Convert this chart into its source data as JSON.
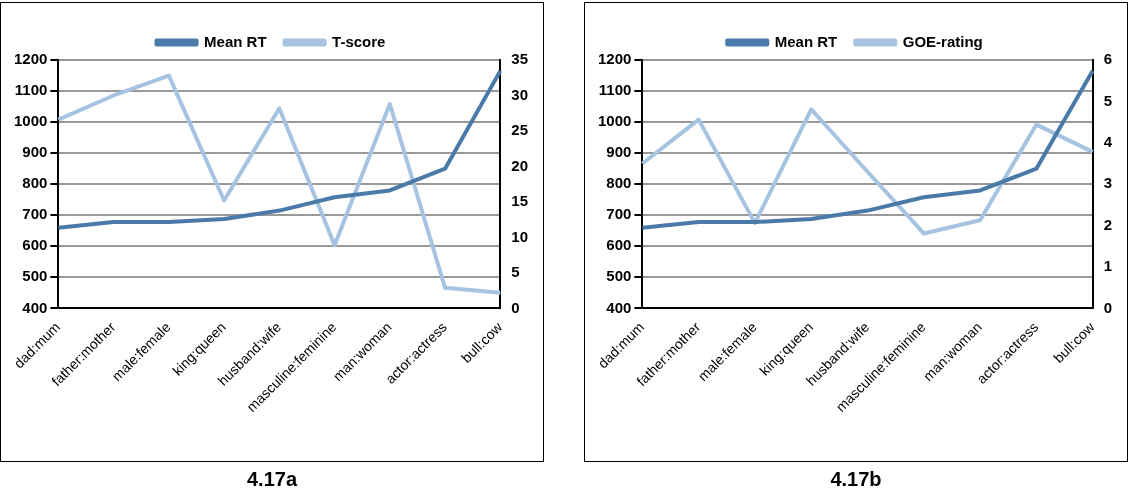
{
  "chart_data": [
    {
      "type": "line",
      "categories": [
        "dad:mum",
        "father:mother",
        "male:female",
        "king:queen",
        "husband:wife",
        "masculine:feminine",
        "man:woman",
        "actor:actress",
        "bull:cow"
      ],
      "series": [
        {
          "name": "Mean RT",
          "color": "#4a7aa8",
          "values": [
            660,
            678,
            678,
            688,
            715,
            758,
            780,
            850,
            1165
          ]
        },
        {
          "name": "T-score",
          "color": "#a6c3e2",
          "axis": "y2",
          "values": [
            26.6,
            30,
            32.8,
            15.2,
            28.2,
            8.9,
            28.8,
            2.9,
            2.2
          ]
        }
      ],
      "ylim": [
        400,
        1200
      ],
      "yticks": [
        400,
        500,
        600,
        700,
        800,
        900,
        1000,
        1100,
        1200
      ],
      "y2lim": [
        0,
        35
      ],
      "y2ticks": [
        0,
        5,
        10,
        15,
        20,
        25,
        30,
        35
      ],
      "legend": "top",
      "grid": "y",
      "marker": "none",
      "annotations": [
        "4.17a"
      ]
    },
    {
      "type": "line",
      "categories": [
        "dad:mum",
        "father:mother",
        "male:female",
        "king:queen",
        "husband:wife",
        "masculine:feminine",
        "man:woman",
        "actor:actress",
        "bull:cow"
      ],
      "series": [
        {
          "name": "Mean RT",
          "color": "#4a7aa8",
          "values": [
            660,
            678,
            678,
            688,
            715,
            758,
            780,
            850,
            1165
          ]
        },
        {
          "name": "GOE-rating",
          "color": "#a6c3e2",
          "axis": "y2",
          "values": [
            3.5,
            4.56,
            2.06,
            4.81,
            3.3,
            1.81,
            2.13,
            4.44,
            3.78
          ]
        }
      ],
      "ylim": [
        400,
        1200
      ],
      "yticks": [
        400,
        500,
        600,
        700,
        800,
        900,
        1000,
        1100,
        1200
      ],
      "y2lim": [
        0,
        6
      ],
      "y2ticks": [
        0,
        1,
        2,
        3,
        4,
        5,
        6
      ],
      "legend": "top",
      "grid": "y",
      "marker": "none",
      "annotations": [
        "4.17b"
      ]
    }
  ]
}
